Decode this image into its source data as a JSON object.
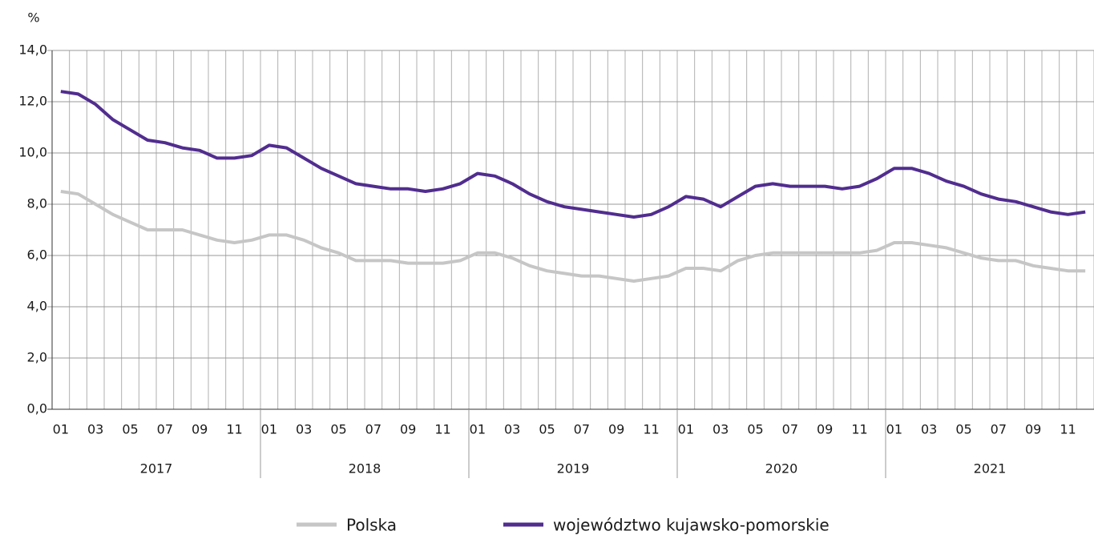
{
  "chart_data": {
    "type": "line",
    "y_label": "%",
    "categories": [
      "01",
      null,
      "03",
      null,
      "05",
      null,
      "07",
      null,
      "09",
      null,
      "11",
      null,
      "01",
      null,
      "03",
      null,
      "05",
      null,
      "07",
      null,
      "09",
      null,
      "11",
      null,
      "01",
      null,
      "03",
      null,
      "05",
      null,
      "07",
      null,
      "09",
      null,
      "11",
      null,
      "01",
      null,
      "03",
      null,
      "05",
      null,
      "07",
      null,
      "09",
      null,
      "11",
      null,
      "01",
      null,
      "03",
      null,
      "05",
      null,
      "07",
      null,
      "09",
      null,
      "11",
      null
    ],
    "years": [
      "2017",
      "2018",
      "2019",
      "2020",
      "2021"
    ],
    "series": [
      {
        "name": "Polska",
        "color": "#c6c6c6",
        "values": [
          8.5,
          8.4,
          8.0,
          7.6,
          7.3,
          7.0,
          7.0,
          7.0,
          6.8,
          6.6,
          6.5,
          6.6,
          6.8,
          6.8,
          6.6,
          6.3,
          6.1,
          5.8,
          5.8,
          5.8,
          5.7,
          5.7,
          5.7,
          5.8,
          6.1,
          6.1,
          5.9,
          5.6,
          5.4,
          5.3,
          5.2,
          5.2,
          5.1,
          5.0,
          5.1,
          5.2,
          5.5,
          5.5,
          5.4,
          5.8,
          6.0,
          6.1,
          6.1,
          6.1,
          6.1,
          6.1,
          6.1,
          6.2,
          6.5,
          6.5,
          6.4,
          6.3,
          6.1,
          5.9,
          5.8,
          5.8,
          5.6,
          5.5,
          5.4,
          5.4
        ]
      },
      {
        "name": "województwo kujawsko-pomorskie",
        "color": "#512d8f",
        "values": [
          12.4,
          12.3,
          11.9,
          11.3,
          10.9,
          10.5,
          10.4,
          10.2,
          10.1,
          9.8,
          9.8,
          9.9,
          10.3,
          10.2,
          9.8,
          9.4,
          9.1,
          8.8,
          8.7,
          8.6,
          8.6,
          8.5,
          8.6,
          8.8,
          9.2,
          9.1,
          8.8,
          8.4,
          8.1,
          7.9,
          7.8,
          7.7,
          7.6,
          7.5,
          7.6,
          7.9,
          8.3,
          8.2,
          7.9,
          8.3,
          8.7,
          8.8,
          8.7,
          8.7,
          8.7,
          8.6,
          8.7,
          9.0,
          9.4,
          9.4,
          9.2,
          8.9,
          8.7,
          8.4,
          8.2,
          8.1,
          7.9,
          7.7,
          7.6,
          7.7
        ]
      }
    ],
    "ylim": [
      0,
      14
    ],
    "yticks": [
      {
        "value": 0,
        "label": "0,0"
      },
      {
        "value": 2,
        "label": "2,0"
      },
      {
        "value": 4,
        "label": "4,0"
      },
      {
        "value": 6,
        "label": "6,0"
      },
      {
        "value": 8,
        "label": "8,0"
      },
      {
        "value": 10,
        "label": "10,0"
      },
      {
        "value": 12,
        "label": "12,0"
      },
      {
        "value": 14,
        "label": "14,0"
      }
    ],
    "grid": true,
    "legend": "bottom"
  }
}
